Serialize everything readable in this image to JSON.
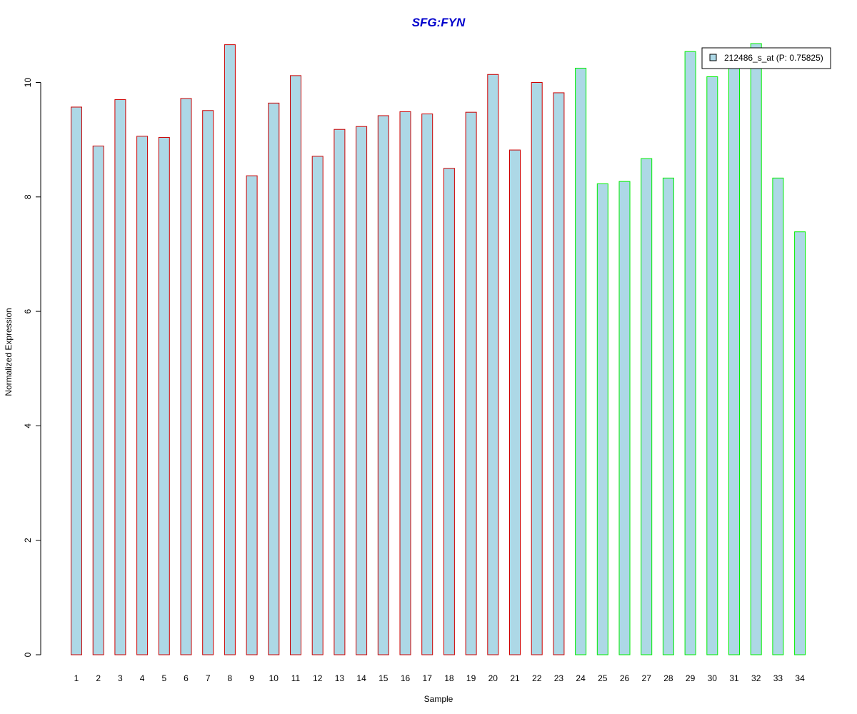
{
  "chart_data": {
    "type": "bar",
    "title": "SFG:FYN",
    "xlabel": "Sample",
    "ylabel": "Normalized Expression",
    "ylim": [
      0,
      10.68
    ],
    "yticks": [
      0,
      2,
      4,
      6,
      8,
      10
    ],
    "grid": false,
    "legend_position": "top-right",
    "categories": [
      "1",
      "2",
      "3",
      "4",
      "5",
      "6",
      "7",
      "8",
      "9",
      "10",
      "11",
      "12",
      "13",
      "14",
      "15",
      "16",
      "17",
      "18",
      "19",
      "20",
      "21",
      "22",
      "23",
      "24",
      "25",
      "26",
      "27",
      "28",
      "29",
      "30",
      "31",
      "32",
      "33",
      "34"
    ],
    "series": [
      {
        "name": "212486_s_at (P: 0.75825)",
        "values": [
          9.57,
          8.89,
          9.7,
          9.06,
          9.04,
          9.72,
          9.51,
          10.66,
          8.37,
          9.64,
          10.12,
          8.71,
          9.18,
          9.23,
          9.42,
          9.49,
          9.45,
          8.5,
          9.48,
          10.14,
          8.82,
          10.0,
          9.82,
          10.25,
          8.23,
          8.27,
          8.67,
          8.33,
          10.54,
          10.1,
          10.35,
          10.68,
          8.33,
          7.39
        ],
        "fill_color": "#add8e6",
        "border_colors": [
          "#cc0000",
          "#cc0000",
          "#cc0000",
          "#cc0000",
          "#cc0000",
          "#cc0000",
          "#cc0000",
          "#cc0000",
          "#cc0000",
          "#cc0000",
          "#cc0000",
          "#cc0000",
          "#cc0000",
          "#cc0000",
          "#cc0000",
          "#cc0000",
          "#cc0000",
          "#cc0000",
          "#cc0000",
          "#cc0000",
          "#cc0000",
          "#cc0000",
          "#cc0000",
          "#00ee00",
          "#00ee00",
          "#00ee00",
          "#00ee00",
          "#00ee00",
          "#00ee00",
          "#00ee00",
          "#00ee00",
          "#00ee00",
          "#00ee00",
          "#00ee00"
        ]
      }
    ],
    "colors": {
      "title": "#0000cc",
      "axis": "#000000",
      "legend_swatch": "#add8e6"
    }
  }
}
